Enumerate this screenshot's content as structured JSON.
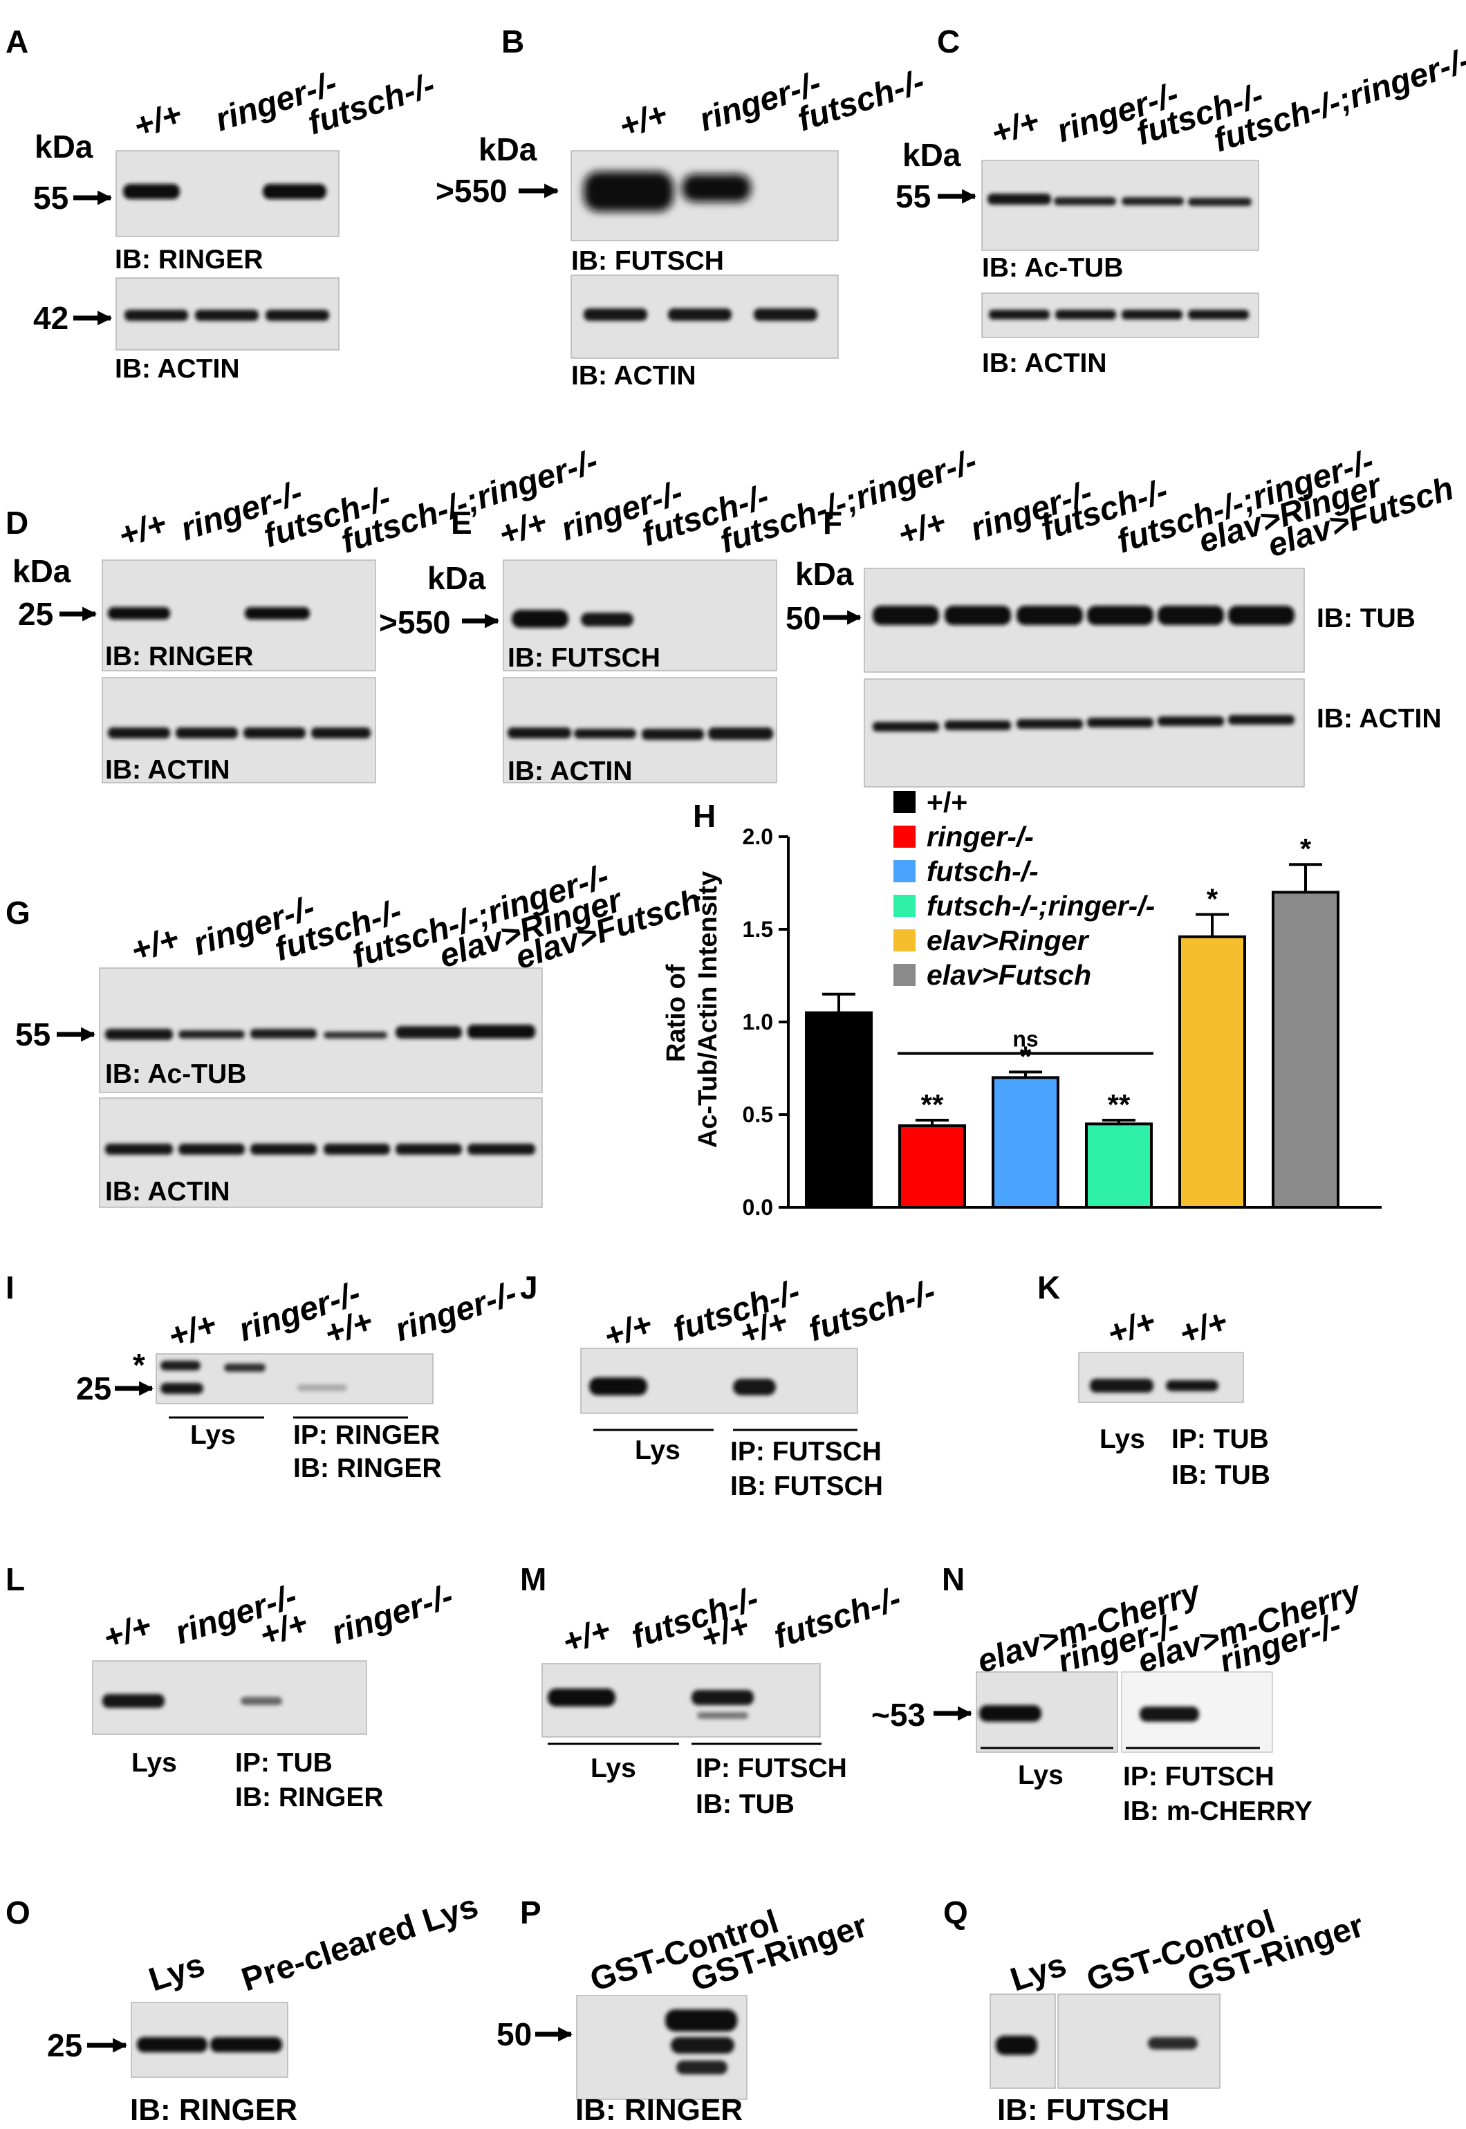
{
  "panels": {
    "A": {
      "letter": "A",
      "lanes": [
        "+/+",
        "ringer-/-",
        "futsch-/-"
      ],
      "kda": "kDa",
      "m1": "55",
      "m2": "42",
      "ib1": "IB: RINGER",
      "ib2": "IB: ACTIN"
    },
    "B": {
      "letter": "B",
      "lanes": [
        "+/+",
        "ringer-/-",
        "futsch-/-"
      ],
      "kda": "kDa",
      "m1": ">550",
      "ib1": "IB: FUTSCH",
      "ib2": "IB: ACTIN"
    },
    "C": {
      "letter": "C",
      "lanes": [
        "+/+",
        "ringer-/-",
        "futsch-/-",
        "futsch-/-;ringer-/-"
      ],
      "kda": "kDa",
      "m1": "55",
      "ib1": "IB: Ac-TUB",
      "ib2": "IB: ACTIN"
    },
    "D": {
      "letter": "D",
      "lanes": [
        "+/+",
        "ringer-/-",
        "futsch-/-",
        "futsch-/-;ringer-/-"
      ],
      "kda": "kDa",
      "m1": "25",
      "ib1": "IB: RINGER",
      "ib2": "IB: ACTIN"
    },
    "E": {
      "letter": "E",
      "lanes": [
        "+/+",
        "ringer-/-",
        "futsch-/-",
        "futsch-/-;ringer-/-"
      ],
      "kda": "kDa",
      "m1": ">550",
      "ib1": "IB: FUTSCH",
      "ib2": "IB: ACTIN"
    },
    "F": {
      "letter": "F",
      "lanes": [
        "+/+",
        "ringer-/-",
        "futsch-/-",
        "futsch-/-;ringer-/-",
        "elav>Ringer",
        "elav>Futsch"
      ],
      "kda": "kDa",
      "m1": "50",
      "ib1": "IB: TUB",
      "ib2": "IB: ACTIN"
    },
    "G": {
      "letter": "G",
      "lanes": [
        "+/+",
        "ringer-/-",
        "futsch-/-",
        "futsch-/-;ringer-/-",
        "elav>Ringer",
        "elav>Futsch"
      ],
      "m1": "55",
      "ib1": "IB: Ac-TUB",
      "ib2": "IB: ACTIN"
    },
    "H": {
      "letter": "H"
    },
    "I": {
      "letter": "I",
      "lanes": [
        "+/+",
        "ringer-/-",
        "+/+",
        "ringer-/-"
      ],
      "star": "*",
      "m1": "25",
      "lys": "Lys",
      "ip": "IP: RINGER",
      "ib": "IB: RINGER"
    },
    "J": {
      "letter": "J",
      "lanes": [
        "+/+",
        "futsch-/-",
        "+/+",
        "futsch-/-"
      ],
      "lys": "Lys",
      "ip": "IP: FUTSCH",
      "ib": "IB: FUTSCH"
    },
    "K": {
      "letter": "K",
      "lanes": [
        "+/+",
        "+/+"
      ],
      "lys": "Lys",
      "ip": "IP: TUB",
      "ib": "IB: TUB"
    },
    "L": {
      "letter": "L",
      "lanes": [
        "+/+",
        "ringer-/-",
        "+/+",
        "ringer-/-"
      ],
      "lys": "Lys",
      "ip": "IP: TUB",
      "ib": "IB: RINGER"
    },
    "M": {
      "letter": "M",
      "lanes": [
        "+/+",
        "futsch-/-",
        "+/+",
        "futsch-/-"
      ],
      "lys": "Lys",
      "ip": "IP: FUTSCH",
      "ib": "IB: TUB"
    },
    "N": {
      "letter": "N",
      "lanes": [
        "elav>m-Cherry",
        "ringer-/-",
        "elav>m-Cherry",
        "ringer-/-"
      ],
      "m1": "~53",
      "lys": "Lys",
      "ip": "IP: FUTSCH",
      "ib": "IB: m-CHERRY"
    },
    "O": {
      "letter": "O",
      "lanes": [
        "Lys",
        "Pre-cleared Lys"
      ],
      "m1": "25",
      "ib": "IB: RINGER"
    },
    "P": {
      "letter": "P",
      "lanes": [
        "GST-Control",
        "GST-Ringer"
      ],
      "m1": "50",
      "ib": "IB: RINGER"
    },
    "Q": {
      "letter": "Q",
      "lanes": [
        "Lys",
        "GST-Control",
        "GST-Ringer"
      ],
      "ib": "IB: FUTSCH"
    }
  },
  "chart_data": {
    "type": "bar",
    "ylabel": "Ratio of\nAc-Tub/Actin Intensity",
    "ylim": [
      0,
      2.0
    ],
    "yticks": [
      "0.0",
      "0.5",
      "1.0",
      "1.5",
      "2.0"
    ],
    "legend_position": "top-left",
    "categories": [
      "+/+",
      "ringer-/-",
      "futsch-/-",
      "futsch-/-;ringer-/-",
      "elav>Ringer",
      "elav>Futsch"
    ],
    "values": [
      1.05,
      0.44,
      0.7,
      0.45,
      1.46,
      1.7
    ],
    "errors": [
      0.1,
      0.03,
      0.03,
      0.02,
      0.12,
      0.15
    ],
    "colors": [
      "#000000",
      "#ff0000",
      "#4aa3ff",
      "#2ff0a8",
      "#f5be2c",
      "#8a8a8a"
    ],
    "significance": [
      "",
      "**",
      "*",
      "**",
      "*",
      "*"
    ],
    "comparison": {
      "from": 1,
      "to": 3,
      "label": "ns"
    }
  }
}
